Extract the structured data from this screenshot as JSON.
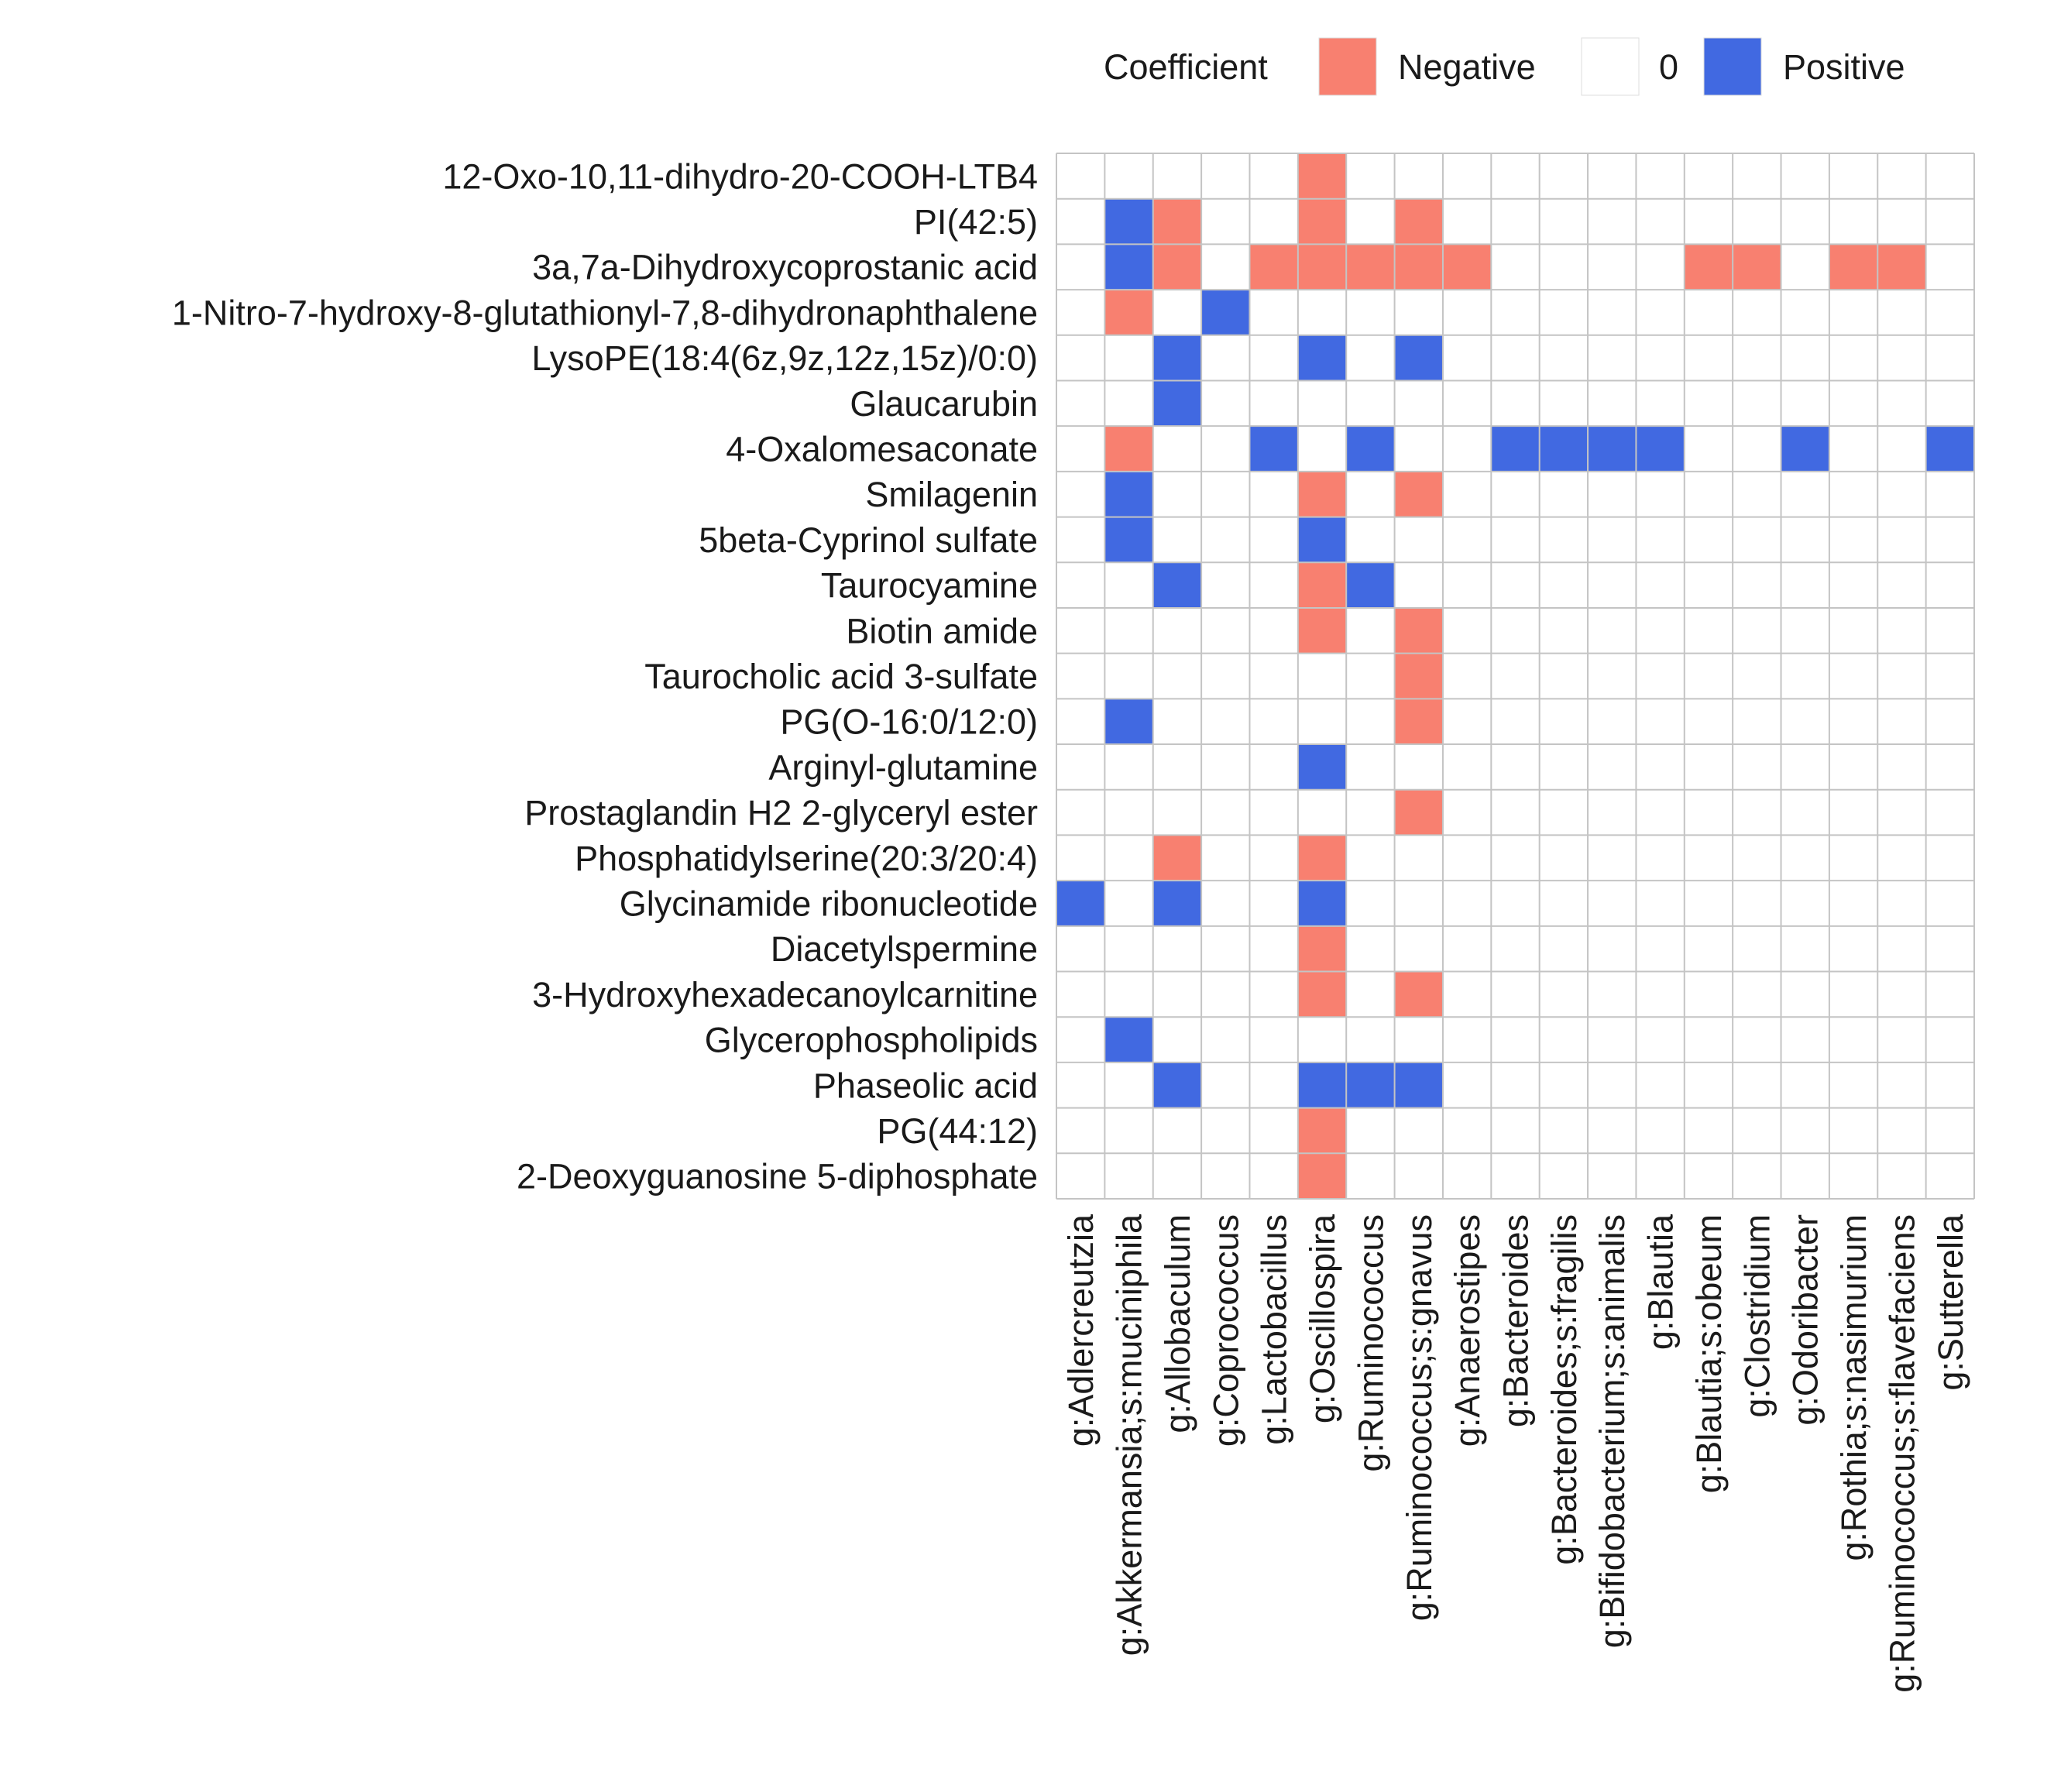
{
  "chart_data": {
    "type": "heatmap",
    "title": "",
    "legend": {
      "title": "Coefficient",
      "placement": "top-right",
      "entries": [
        {
          "label": "Negative",
          "value": -1,
          "color": "#F88070"
        },
        {
          "label": "0",
          "value": 0,
          "color": "#FFFFFF"
        },
        {
          "label": "Positive",
          "value": 1,
          "color": "#4169E1"
        }
      ]
    },
    "rows": [
      "12-Oxo-10,11-dihydro-20-COOH-LTB4",
      "PI(42:5)",
      "3a,7a-Dihydroxycoprostanic acid",
      "1-Nitro-7-hydroxy-8-glutathionyl-7,8-dihydronaphthalene",
      "LysoPE(18:4(6z,9z,12z,15z)/0:0)",
      "Glaucarubin",
      "4-Oxalomesaconate",
      "Smilagenin",
      "5beta-Cyprinol sulfate",
      "Taurocyamine",
      "Biotin amide",
      "Taurocholic acid 3-sulfate",
      "PG(O-16:0/12:0)",
      "Arginyl-glutamine",
      "Prostaglandin H2 2-glyceryl ester",
      "Phosphatidylserine(20:3/20:4)",
      "Glycinamide ribonucleotide",
      "Diacetylspermine",
      "3-Hydroxyhexadecanoylcarnitine",
      "Glycerophospholipids",
      "Phaseolic acid",
      "PG(44:12)",
      "2-Deoxyguanosine 5-diphosphate"
    ],
    "columns": [
      "g:Adlercreutzia",
      "g:Akkermansia;s:muciniphila",
      "g:Allobaculum",
      "g:Coprococcus",
      "g:Lactobacillus",
      "g:Oscillospira",
      "g:Ruminococcus",
      "g:Ruminococcus;s:gnavus",
      "g:Anaerostipes",
      "g:Bacteroides",
      "g:Bacteroides;s:fragilis",
      "g:Bifidobacterium;s:animalis",
      "g:Blautia",
      "g:Blautia;s:obeum",
      "g:Clostridium",
      "g:Odoribacter",
      "g:Rothia;s:nasimurium",
      "g:Ruminococcus;s:flavefaciens",
      "g:Sutterella"
    ],
    "values": [
      [
        0,
        0,
        0,
        0,
        0,
        -1,
        0,
        0,
        0,
        0,
        0,
        0,
        0,
        0,
        0,
        0,
        0,
        0,
        0
      ],
      [
        0,
        1,
        -1,
        0,
        0,
        -1,
        0,
        -1,
        0,
        0,
        0,
        0,
        0,
        0,
        0,
        0,
        0,
        0,
        0
      ],
      [
        0,
        1,
        -1,
        0,
        -1,
        -1,
        -1,
        -1,
        -1,
        0,
        0,
        0,
        0,
        -1,
        -1,
        0,
        -1,
        -1,
        0
      ],
      [
        0,
        -1,
        0,
        1,
        0,
        0,
        0,
        0,
        0,
        0,
        0,
        0,
        0,
        0,
        0,
        0,
        0,
        0,
        0
      ],
      [
        0,
        0,
        1,
        0,
        0,
        1,
        0,
        1,
        0,
        0,
        0,
        0,
        0,
        0,
        0,
        0,
        0,
        0,
        0
      ],
      [
        0,
        0,
        1,
        0,
        0,
        0,
        0,
        0,
        0,
        0,
        0,
        0,
        0,
        0,
        0,
        0,
        0,
        0,
        0
      ],
      [
        0,
        -1,
        0,
        0,
        1,
        0,
        1,
        0,
        0,
        1,
        1,
        1,
        1,
        0,
        0,
        1,
        0,
        0,
        1
      ],
      [
        0,
        1,
        0,
        0,
        0,
        -1,
        0,
        -1,
        0,
        0,
        0,
        0,
        0,
        0,
        0,
        0,
        0,
        0,
        0
      ],
      [
        0,
        1,
        0,
        0,
        0,
        1,
        0,
        0,
        0,
        0,
        0,
        0,
        0,
        0,
        0,
        0,
        0,
        0,
        0
      ],
      [
        0,
        0,
        1,
        0,
        0,
        -1,
        1,
        0,
        0,
        0,
        0,
        0,
        0,
        0,
        0,
        0,
        0,
        0,
        0
      ],
      [
        0,
        0,
        0,
        0,
        0,
        -1,
        0,
        -1,
        0,
        0,
        0,
        0,
        0,
        0,
        0,
        0,
        0,
        0,
        0
      ],
      [
        0,
        0,
        0,
        0,
        0,
        0,
        0,
        -1,
        0,
        0,
        0,
        0,
        0,
        0,
        0,
        0,
        0,
        0,
        0
      ],
      [
        0,
        1,
        0,
        0,
        0,
        0,
        0,
        -1,
        0,
        0,
        0,
        0,
        0,
        0,
        0,
        0,
        0,
        0,
        0
      ],
      [
        0,
        0,
        0,
        0,
        0,
        1,
        0,
        0,
        0,
        0,
        0,
        0,
        0,
        0,
        0,
        0,
        0,
        0,
        0
      ],
      [
        0,
        0,
        0,
        0,
        0,
        0,
        0,
        -1,
        0,
        0,
        0,
        0,
        0,
        0,
        0,
        0,
        0,
        0,
        0
      ],
      [
        0,
        0,
        -1,
        0,
        0,
        -1,
        0,
        0,
        0,
        0,
        0,
        0,
        0,
        0,
        0,
        0,
        0,
        0,
        0
      ],
      [
        1,
        0,
        1,
        0,
        0,
        1,
        0,
        0,
        0,
        0,
        0,
        0,
        0,
        0,
        0,
        0,
        0,
        0,
        0
      ],
      [
        0,
        0,
        0,
        0,
        0,
        -1,
        0,
        0,
        0,
        0,
        0,
        0,
        0,
        0,
        0,
        0,
        0,
        0,
        0
      ],
      [
        0,
        0,
        0,
        0,
        0,
        -1,
        0,
        -1,
        0,
        0,
        0,
        0,
        0,
        0,
        0,
        0,
        0,
        0,
        0
      ],
      [
        0,
        1,
        0,
        0,
        0,
        0,
        0,
        0,
        0,
        0,
        0,
        0,
        0,
        0,
        0,
        0,
        0,
        0,
        0
      ],
      [
        0,
        0,
        1,
        0,
        0,
        1,
        1,
        1,
        0,
        0,
        0,
        0,
        0,
        0,
        0,
        0,
        0,
        0,
        0
      ],
      [
        0,
        0,
        0,
        0,
        0,
        -1,
        0,
        0,
        0,
        0,
        0,
        0,
        0,
        0,
        0,
        0,
        0,
        0,
        0
      ],
      [
        0,
        0,
        0,
        0,
        0,
        -1,
        0,
        0,
        0,
        0,
        0,
        0,
        0,
        0,
        0,
        0,
        0,
        0,
        0
      ]
    ],
    "grid": true,
    "xlabel": "",
    "ylabel": ""
  }
}
